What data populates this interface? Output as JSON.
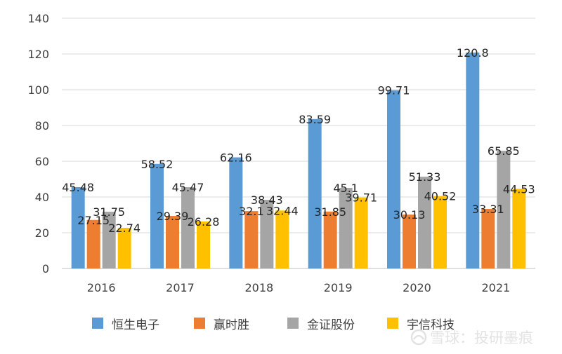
{
  "chart_data": {
    "type": "bar",
    "categories": [
      "2016",
      "2017",
      "2018",
      "2019",
      "2020",
      "2021"
    ],
    "series": [
      {
        "name": "恒生电子",
        "color": "#5b9bd5",
        "values": [
          45.48,
          58.52,
          62.16,
          83.59,
          99.71,
          120.8
        ]
      },
      {
        "name": "赢时胜",
        "color": "#ed7d31",
        "values": [
          27.15,
          29.39,
          32.1,
          31.85,
          30.13,
          33.31
        ]
      },
      {
        "name": "金证股份",
        "color": "#a5a5a5",
        "values": [
          31.75,
          45.47,
          38.43,
          45.1,
          51.33,
          65.85
        ]
      },
      {
        "name": "宇信科技",
        "color": "#ffc000",
        "values": [
          22.74,
          26.28,
          32.44,
          39.71,
          40.52,
          44.53
        ]
      }
    ],
    "value_labels": [
      [
        "45.48",
        "58.52",
        "62.16",
        "83.59",
        "99.71",
        "120.8"
      ],
      [
        "27.15",
        "29.39",
        "32.1",
        "31.85",
        "30.13",
        "33.31"
      ],
      [
        "31.75",
        "45.47",
        "38.43",
        "45.1",
        "51.33",
        "65.85"
      ],
      [
        "22.74",
        "26.28",
        "32.44",
        "39.71",
        "40.52",
        "44.53"
      ]
    ],
    "ylim": [
      0,
      140
    ],
    "yticks": [
      "0",
      "20",
      "40",
      "60",
      "80",
      "100",
      "120",
      "140"
    ],
    "grid": true,
    "legend_position": "bottom"
  },
  "watermark": {
    "text": "雪球：投研墨痕"
  }
}
